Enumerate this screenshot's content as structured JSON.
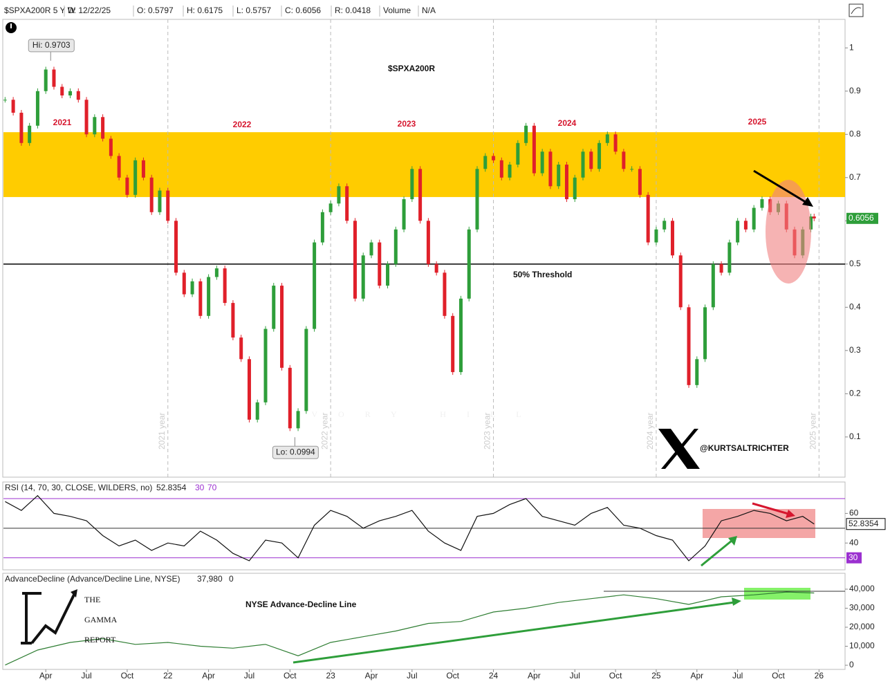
{
  "header": {
    "items": [
      "$SPXA200R 5 Y W",
      "D: 12/22/25",
      "O: 0.5797",
      "H: 0.6175",
      "L: 0.5757",
      "C: 0.6056",
      "R: 0.0418",
      "Volume",
      "N/A"
    ]
  },
  "watermark": "IVORY HILL",
  "handle": "@KURTSALTRICHTER",
  "logo": [
    "THE",
    "GAMMA",
    "REPORT"
  ],
  "chart_data": [
    {
      "type": "candlestick",
      "title": "$SPXA200R",
      "xlim": [
        2020.99,
        2026.16
      ],
      "ylim": [
        0.007,
        1.066
      ],
      "yticks": [
        0.1,
        0.2,
        0.3,
        0.4,
        0.5,
        0.6,
        0.7,
        0.8,
        0.9,
        1
      ],
      "band": [
        0.655,
        0.805
      ],
      "band_color": "#ffcc00",
      "threshold": 0.5,
      "threshold_label": "50% Threshold",
      "year_labels": [
        "2021",
        "2022",
        "2023",
        "2024",
        "2025"
      ],
      "period_labels": [
        "2021 year",
        "2022 year",
        "2023 year",
        "2024 year",
        "2025 year"
      ],
      "last_label": "0.6056",
      "annotations": [
        {
          "label": "Hi: 0.9703",
          "x": 2021.28,
          "value": 0.9703
        },
        {
          "label": "Lo: 0.0994",
          "x": 2022.78,
          "value": 0.0994
        }
      ],
      "up_color": "#2e9e3a",
      "down_color": "#e0202a",
      "x": [
        2021.0,
        2021.05,
        2021.1,
        2021.15,
        2021.2,
        2021.25,
        2021.3,
        2021.35,
        2021.4,
        2021.45,
        2021.5,
        2021.55,
        2021.6,
        2021.65,
        2021.7,
        2021.75,
        2021.8,
        2021.85,
        2021.9,
        2021.95,
        2022.0,
        2022.05,
        2022.1,
        2022.15,
        2022.2,
        2022.25,
        2022.3,
        2022.35,
        2022.4,
        2022.45,
        2022.5,
        2022.55,
        2022.6,
        2022.65,
        2022.7,
        2022.75,
        2022.8,
        2022.85,
        2022.9,
        2022.95,
        2023.0,
        2023.05,
        2023.1,
        2023.15,
        2023.2,
        2023.25,
        2023.3,
        2023.35,
        2023.4,
        2023.45,
        2023.5,
        2023.55,
        2023.6,
        2023.65,
        2023.7,
        2023.75,
        2023.8,
        2023.85,
        2023.9,
        2023.95,
        2024.0,
        2024.05,
        2024.1,
        2024.15,
        2024.2,
        2024.25,
        2024.3,
        2024.35,
        2024.4,
        2024.45,
        2024.5,
        2024.55,
        2024.6,
        2024.65,
        2024.7,
        2024.75,
        2024.8,
        2024.85,
        2024.9,
        2024.95,
        2025.0,
        2025.05,
        2025.1,
        2025.15,
        2025.2,
        2025.25,
        2025.3,
        2025.35,
        2025.4,
        2025.45,
        2025.5,
        2025.55,
        2025.6,
        2025.65,
        2025.7,
        2025.75,
        2025.8,
        2025.85,
        2025.9,
        2025.95,
        2025.97
      ],
      "series": [
        {
          "name": "$SPXA200R",
          "values": [
            0.88,
            0.85,
            0.78,
            0.82,
            0.9,
            0.95,
            0.91,
            0.89,
            0.9,
            0.88,
            0.8,
            0.84,
            0.79,
            0.75,
            0.7,
            0.66,
            0.74,
            0.7,
            0.62,
            0.67,
            0.6,
            0.48,
            0.43,
            0.46,
            0.38,
            0.47,
            0.49,
            0.41,
            0.33,
            0.28,
            0.14,
            0.18,
            0.35,
            0.45,
            0.26,
            0.12,
            0.16,
            0.35,
            0.55,
            0.62,
            0.64,
            0.68,
            0.6,
            0.42,
            0.52,
            0.55,
            0.45,
            0.5,
            0.58,
            0.65,
            0.72,
            0.6,
            0.5,
            0.48,
            0.38,
            0.25,
            0.42,
            0.58,
            0.72,
            0.75,
            0.74,
            0.7,
            0.73,
            0.78,
            0.82,
            0.71,
            0.76,
            0.68,
            0.73,
            0.65,
            0.7,
            0.76,
            0.72,
            0.78,
            0.8,
            0.76,
            0.72,
            0.72,
            0.66,
            0.55,
            0.58,
            0.6,
            0.52,
            0.4,
            0.22,
            0.28,
            0.4,
            0.5,
            0.48,
            0.55,
            0.6,
            0.58,
            0.63,
            0.65,
            0.62,
            0.64,
            0.58,
            0.52,
            0.58,
            0.61,
            0.6056
          ]
        }
      ]
    },
    {
      "type": "line",
      "title": "RSI (14, 70, 30, CLOSE, WILDERS, no)",
      "header_values": [
        "52.8354",
        "30",
        "70"
      ],
      "xlim": [
        2020.99,
        2026.16
      ],
      "ylim": [
        21.9,
        81.2
      ],
      "yticks": [
        40,
        60
      ],
      "levels": [
        30,
        70
      ],
      "level_color": "#9b30d0",
      "mid": 50,
      "last_label": "52.8354",
      "x": [
        2021.0,
        2021.1,
        2021.2,
        2021.3,
        2021.4,
        2021.5,
        2021.6,
        2021.7,
        2021.8,
        2021.9,
        2022.0,
        2022.1,
        2022.2,
        2022.3,
        2022.4,
        2022.5,
        2022.6,
        2022.7,
        2022.8,
        2022.9,
        2023.0,
        2023.1,
        2023.2,
        2023.3,
        2023.4,
        2023.5,
        2023.6,
        2023.7,
        2023.8,
        2023.9,
        2024.0,
        2024.1,
        2024.2,
        2024.3,
        2024.4,
        2024.5,
        2024.6,
        2024.7,
        2024.8,
        2024.9,
        2025.0,
        2025.1,
        2025.2,
        2025.3,
        2025.4,
        2025.5,
        2025.6,
        2025.7,
        2025.8,
        2025.9,
        2025.97
      ],
      "series": [
        {
          "name": "RSI",
          "color": "#111111",
          "values": [
            68,
            62,
            72,
            60,
            58,
            55,
            45,
            38,
            42,
            35,
            40,
            38,
            48,
            42,
            33,
            28,
            42,
            40,
            30,
            52,
            62,
            58,
            50,
            55,
            58,
            62,
            48,
            40,
            35,
            58,
            60,
            66,
            70,
            58,
            55,
            52,
            60,
            64,
            52,
            50,
            45,
            42,
            28,
            38,
            55,
            58,
            62,
            60,
            55,
            58,
            52.8354
          ]
        }
      ]
    },
    {
      "type": "line",
      "title": "AdvanceDecline (Advance/Decline Line, NYSE)",
      "header_values": [
        "37,980",
        "0"
      ],
      "subtitle": "NYSE Advance-Decline Line",
      "xlim": [
        2020.99,
        2026.16
      ],
      "ylim": [
        -2180,
        48360
      ],
      "yticks": [
        0,
        {
          "value": 10000,
          "label": "10,000"
        },
        {
          "value": 20000,
          "label": "20,000"
        },
        {
          "value": 30000,
          "label": "30,000"
        },
        {
          "value": 40000,
          "label": "40,000"
        }
      ],
      "xticks": [
        {
          "value": 2021.25,
          "label": "Apr"
        },
        {
          "value": 2021.5,
          "label": "Jul"
        },
        {
          "value": 2021.75,
          "label": "Oct"
        },
        {
          "value": 2022,
          "label": "22"
        },
        {
          "value": 2022.25,
          "label": "Apr"
        },
        {
          "value": 2022.5,
          "label": "Jul"
        },
        {
          "value": 2022.75,
          "label": "Oct"
        },
        {
          "value": 2023,
          "label": "23"
        },
        {
          "value": 2023.25,
          "label": "Apr"
        },
        {
          "value": 2023.5,
          "label": "Jul"
        },
        {
          "value": 2023.75,
          "label": "Oct"
        },
        {
          "value": 2024,
          "label": "24"
        },
        {
          "value": 2024.25,
          "label": "Apr"
        },
        {
          "value": 2024.5,
          "label": "Jul"
        },
        {
          "value": 2024.75,
          "label": "Oct"
        },
        {
          "value": 2025,
          "label": "25"
        },
        {
          "value": 2025.25,
          "label": "Apr"
        },
        {
          "value": 2025.5,
          "label": "Jul"
        },
        {
          "value": 2025.75,
          "label": "Oct"
        },
        {
          "value": 2026,
          "label": "26"
        }
      ],
      "x": [
        2021.0,
        2021.2,
        2021.4,
        2021.6,
        2021.8,
        2022.0,
        2022.2,
        2022.4,
        2022.6,
        2022.8,
        2023.0,
        2023.2,
        2023.4,
        2023.6,
        2023.8,
        2024.0,
        2024.2,
        2024.4,
        2024.6,
        2024.8,
        2025.0,
        2025.2,
        2025.4,
        2025.6,
        2025.8,
        2025.97
      ],
      "series": [
        {
          "name": "AdvanceDecline",
          "color": "#2e7d32",
          "values": [
            100,
            8000,
            12000,
            14000,
            11000,
            12000,
            10000,
            9000,
            11000,
            5000,
            12000,
            15000,
            18000,
            22000,
            23000,
            28000,
            30000,
            33000,
            35000,
            37000,
            35000,
            32000,
            36000,
            37000,
            38500,
            37980
          ]
        }
      ]
    }
  ]
}
